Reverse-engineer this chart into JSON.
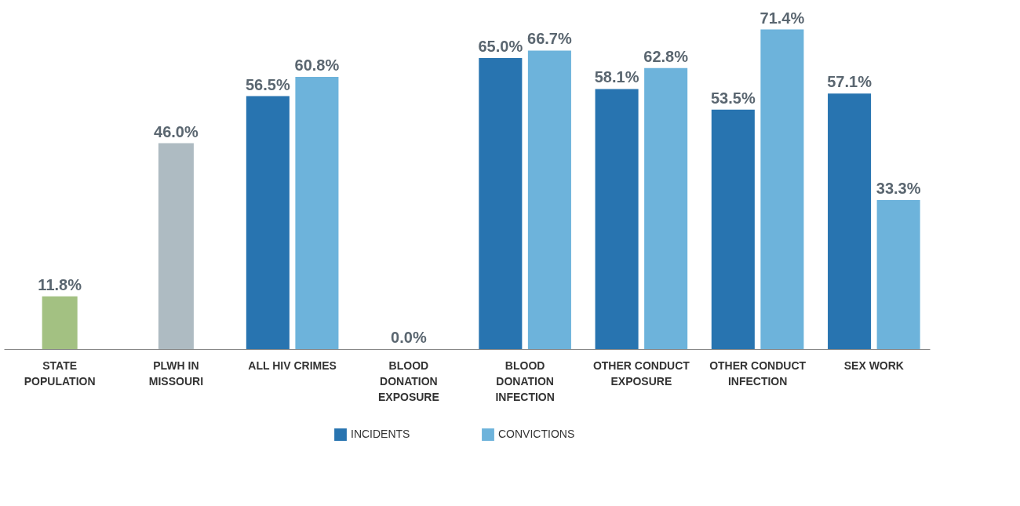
{
  "chart_data": {
    "type": "bar",
    "categories": [
      "STATE\nPOPULATION",
      "PLWH IN\nMISSOURI",
      "ALL HIV CRIMES",
      "BLOOD\nDONATION\nEXPOSURE",
      "BLOOD\nDONATION\nINFECTION",
      "OTHER CONDUCT\nEXPOSURE",
      "OTHER CONDUCT\nINFECTION",
      "SEX WORK"
    ],
    "series": [
      {
        "name": "INCIDENTS",
        "color": "#2874b0",
        "colors": [
          "#a3c182",
          "#aebbc2",
          "#2874b0",
          "#2874b0",
          "#2874b0",
          "#2874b0",
          "#2874b0",
          "#2874b0"
        ],
        "values": [
          11.8,
          46.0,
          56.5,
          0.0,
          65.0,
          58.1,
          53.5,
          57.1
        ],
        "value_labels": [
          "11.8%",
          "46.0%",
          "56.5%",
          "0.0%",
          "65.0%",
          "58.1%",
          "53.5%",
          "57.1%"
        ]
      },
      {
        "name": "CONVICTIONS",
        "color": "#6db3db",
        "values": [
          null,
          null,
          60.8,
          null,
          66.7,
          62.8,
          71.4,
          33.3
        ],
        "value_labels": [
          null,
          null,
          "60.8%",
          null,
          "66.7%",
          "62.8%",
          "71.4%",
          "33.3%"
        ]
      }
    ],
    "legend": "bottom"
  }
}
